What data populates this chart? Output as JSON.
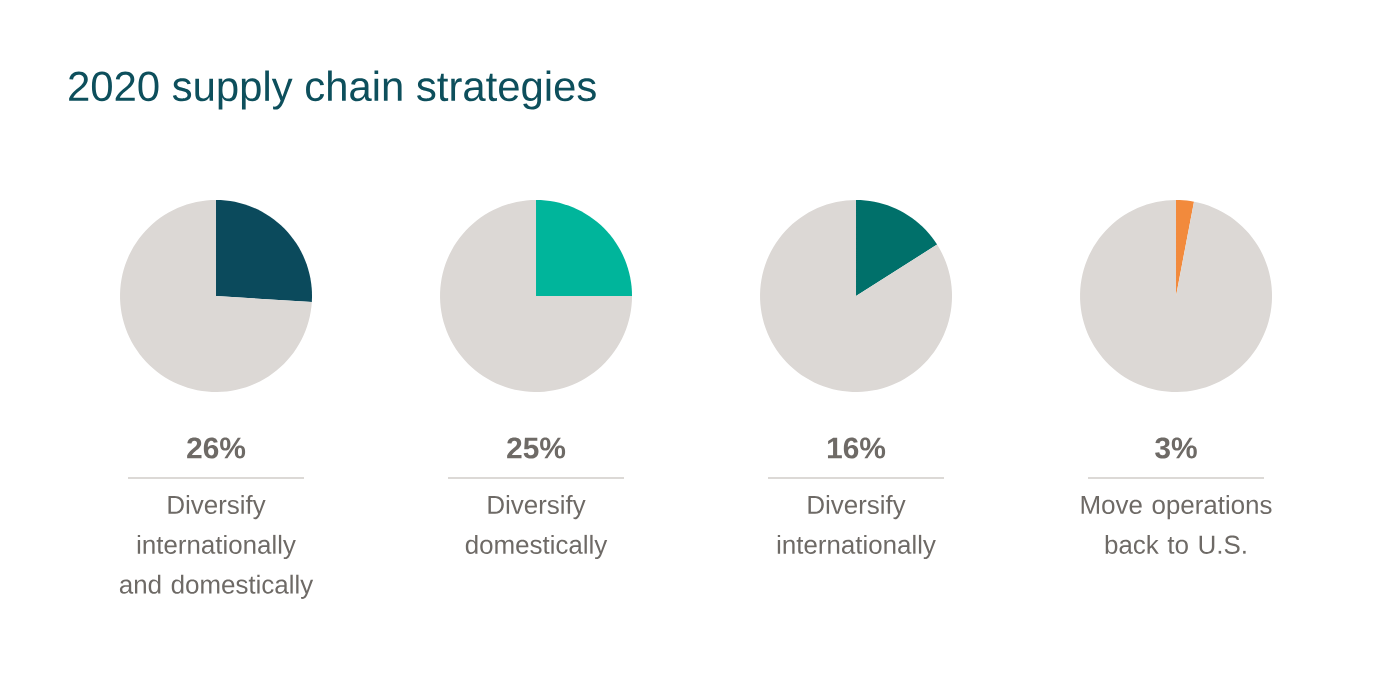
{
  "chart_data": [
    {
      "type": "pie",
      "title": "2020 supply chain strategies",
      "categories": [
        null,
        null
      ],
      "values": [
        26,
        74
      ],
      "colors": [
        "#0b4a5c",
        "#dcd8d5"
      ],
      "annotations": [
        "26%"
      ],
      "xlabel": "Diversify internationally and domestically"
    },
    {
      "type": "pie",
      "categories": [
        null,
        null
      ],
      "values": [
        25,
        75
      ],
      "colors": [
        "#00b59b",
        "#dcd8d5"
      ],
      "annotations": [
        "25%"
      ],
      "xlabel": "Diversify domestically"
    },
    {
      "type": "pie",
      "categories": [
        null,
        null
      ],
      "values": [
        16,
        84
      ],
      "colors": [
        "#00706a",
        "#dcd8d5"
      ],
      "annotations": [
        "16%"
      ],
      "xlabel": "Diversify internationally"
    },
    {
      "type": "pie",
      "categories": [
        null,
        null
      ],
      "values": [
        3,
        97
      ],
      "colors": [
        "#f28a3c",
        "#dcd8d5"
      ],
      "annotations": [
        "3%"
      ],
      "xlabel": "Move operations back to U.S."
    }
  ]
}
